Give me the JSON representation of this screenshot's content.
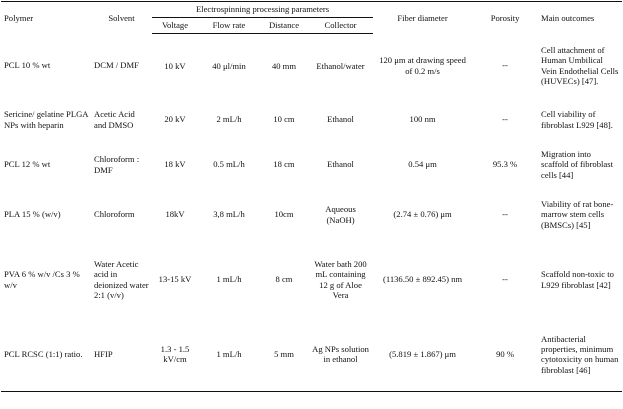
{
  "headers": {
    "polymer": "Polymer",
    "solvent": "Solvent",
    "group": "Electrospinning processing parameters",
    "voltage": "Voltage",
    "flow_rate": "Flow rate",
    "distance": "Distance",
    "collector": "Collector",
    "fiber_diameter": "Fiber diameter",
    "porosity": "Porosity",
    "main_outcomes": "Main outcomes"
  },
  "rows": [
    {
      "polymer": "PCL 10 % wt",
      "solvent": "DCM / DMF",
      "voltage": "10 kV",
      "flow_rate": "40 μl/min",
      "distance": "40 mm",
      "collector": "Ethanol/water",
      "fiber_diameter": "120 μm at drawing speed of 0.2 m/s",
      "porosity": "--",
      "outcome": "Cell attachment of Human Umbilical Vein Endothelial Cells (HUVECs) [47]."
    },
    {
      "polymer": "Sericine/ gelatine PLGA NPs with heparin",
      "solvent": "Acetic Acid and DMSO",
      "voltage": "20 kV",
      "flow_rate": "2 mL/h",
      "distance": "10 cm",
      "collector": "Ethanol",
      "fiber_diameter": "100 nm",
      "porosity": "--",
      "outcome": "Cell viability of fibroblast L929 [48]."
    },
    {
      "polymer": "PCL 12 % wt",
      "solvent": "Chloroform : DMF",
      "voltage": "18 kV",
      "flow_rate": "0.5 mL/h",
      "distance": "18 cm",
      "collector": "Ethanol",
      "fiber_diameter": "0.54 μm",
      "porosity": "95.3 %",
      "outcome": "Migration into scaffold of fibroblast cells [44]"
    },
    {
      "polymer": "PLA 15 % (w/v)",
      "solvent": "Chloroform",
      "voltage": "18kV",
      "flow_rate": "3,8 mL/h",
      "distance": "10cm",
      "collector": "Aqueous (NaOH)",
      "fiber_diameter": "(2.74 ± 0.76) μm",
      "porosity": "--",
      "outcome": "Viability of rat bone-marrow stem cells (BMSCs) [45]"
    },
    {
      "polymer": "PVA 6 % w/v /Cs 3 % w/v",
      "solvent": "Water Acetic acid in deionized water 2:1 (v/v)",
      "voltage": "13-15 kV",
      "flow_rate": "1 mL/h",
      "distance": "8 cm",
      "collector": "Water bath 200 mL containing 12 g of Aloe Vera",
      "fiber_diameter": "(1136.50 ± 892.45) nm",
      "porosity": "--",
      "outcome": "Scaffold non-toxic to L929 fibroblast [42]"
    },
    {
      "polymer": "PCL RCSC (1:1) ratio.",
      "solvent": "HFIP",
      "voltage": "1.3 - 1.5 kV/cm",
      "flow_rate": "1 mL/h",
      "distance": "5 mm",
      "collector": "Ag NPs solution in ethanol",
      "fiber_diameter": "(5.819 ± 1.867) μm",
      "porosity": "90 %",
      "outcome": "Antibacterial properties, minimum cytotoxicity on human fibroblast [46]"
    }
  ]
}
